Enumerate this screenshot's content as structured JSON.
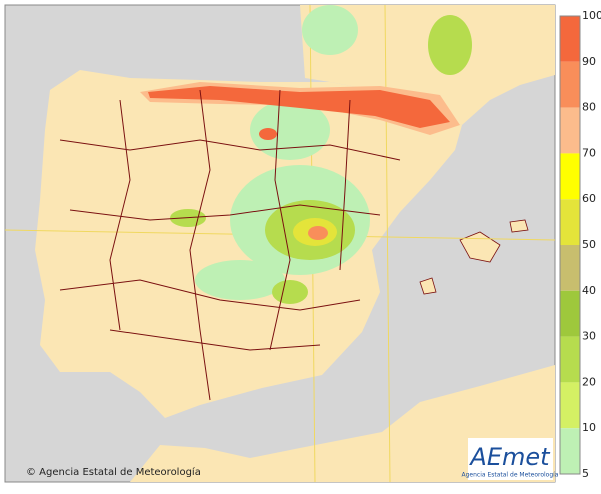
{
  "copyright": "© Agencia Estatal de Meteorología",
  "logo": {
    "mark": "AEmet",
    "subtitle": "Agencia Estatal de Meteorología"
  },
  "legend": {
    "ticks": [
      100,
      90,
      80,
      70,
      60,
      50,
      40,
      30,
      20,
      10,
      5
    ],
    "colors": [
      "#f4683c",
      "#f98e5a",
      "#fcbc8c",
      "#ffff00",
      "#e4e43a",
      "#c8be6e",
      "#9ec83c",
      "#b6dc4e",
      "#d4f064",
      "#bef0b4"
    ]
  }
}
